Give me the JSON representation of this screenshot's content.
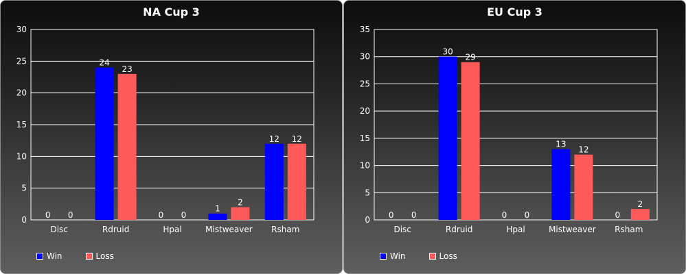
{
  "chart_data": [
    {
      "type": "bar",
      "title": "NA Cup 3",
      "categories": [
        "Disc",
        "Rdruid",
        "Hpal",
        "Mistweaver",
        "Rsham"
      ],
      "series": [
        {
          "name": "Win",
          "color": "#0000ff",
          "values": [
            0,
            24,
            0,
            1,
            12
          ]
        },
        {
          "name": "Loss",
          "color": "#ff5a5a",
          "values": [
            0,
            23,
            0,
            2,
            12
          ]
        }
      ],
      "ylim": [
        0,
        30
      ],
      "yticks": [
        0,
        5,
        10,
        15,
        20,
        25,
        30
      ],
      "grid": true,
      "legend": "bottom-left"
    },
    {
      "type": "bar",
      "title": "EU Cup 3",
      "categories": [
        "Disc",
        "Rdruid",
        "Hpal",
        "Mistweaver",
        "Rsham"
      ],
      "series": [
        {
          "name": "Win",
          "color": "#0000ff",
          "values": [
            0,
            30,
            0,
            13,
            0
          ]
        },
        {
          "name": "Loss",
          "color": "#ff5a5a",
          "values": [
            0,
            29,
            0,
            12,
            2
          ]
        }
      ],
      "ylim": [
        0,
        35
      ],
      "yticks": [
        0,
        5,
        10,
        15,
        20,
        25,
        30,
        35
      ],
      "grid": true,
      "legend": "bottom-left"
    }
  ]
}
